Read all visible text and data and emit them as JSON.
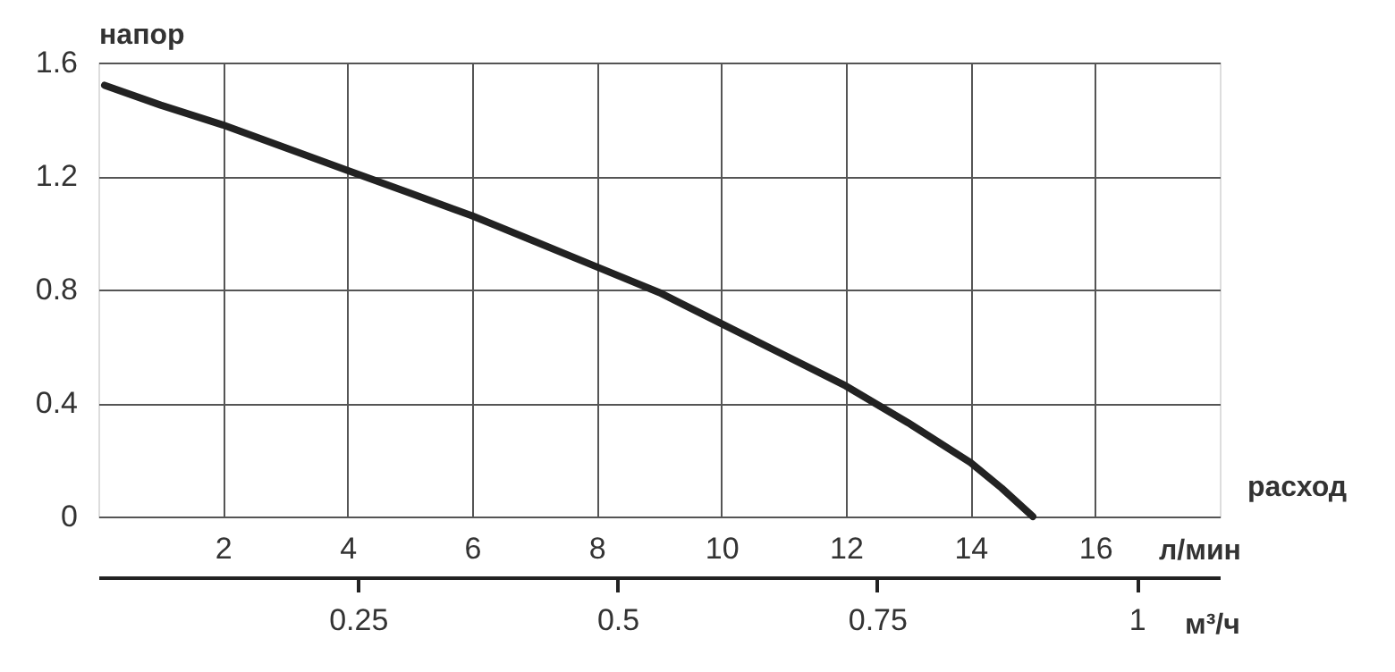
{
  "chart_data": {
    "type": "line",
    "xlabel": "расход",
    "ylabel": "напор",
    "x2label": "м³/ч",
    "annotations": [
      "л/мин"
    ],
    "xlim": [
      0,
      18
    ],
    "xticks": [
      2,
      4,
      6,
      8,
      10,
      12,
      14,
      16
    ],
    "ylim": [
      0,
      1.6
    ],
    "yticks": [
      0,
      0.4,
      0.8,
      1.2,
      1.6
    ],
    "x2lim": [
      0,
      1.08
    ],
    "x2ticks": [
      0.25,
      0.5,
      0.75,
      1
    ],
    "grid": true,
    "line_style": "solid",
    "series": [
      {
        "color": "#222222",
        "x": [
          0.1,
          1,
          2,
          3,
          4,
          5,
          6,
          7,
          8,
          9,
          10,
          11,
          12,
          13,
          14,
          14.5,
          15
        ],
        "values": [
          1.52,
          1.45,
          1.38,
          1.3,
          1.22,
          1.14,
          1.06,
          0.97,
          0.88,
          0.79,
          0.68,
          0.57,
          0.46,
          0.33,
          0.19,
          0.1,
          0.0
        ]
      }
    ]
  }
}
